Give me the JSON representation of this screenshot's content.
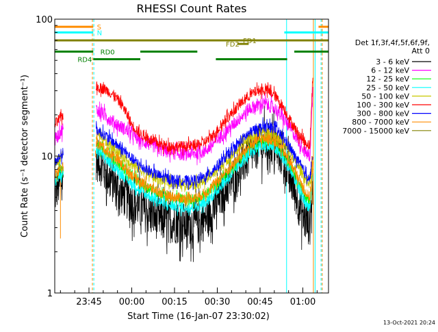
{
  "chart_data": {
    "type": "line",
    "title": "RHESSI Count Rates",
    "xlabel": "Start Time (16-Jan-07 23:30:02)",
    "ylabel": "Count Rate (s⁻¹ detector segment⁻¹)",
    "yscale": "log",
    "ylim": [
      1,
      100
    ],
    "y_ticks": [
      "1",
      "10",
      "100"
    ],
    "xlim_minutes_after_2330": [
      3,
      99
    ],
    "x_ticks": [
      {
        "label": "23:45",
        "m": 15
      },
      {
        "label": "00:00",
        "m": 30
      },
      {
        "label": "00:15",
        "m": 45
      },
      {
        "label": "00:30",
        "m": 60
      },
      {
        "label": "00:45",
        "m": 75
      },
      {
        "label": "01:00",
        "m": 90
      }
    ],
    "legend": {
      "placement": "right",
      "title": [
        "Det 1f,3f,4f,5f,6f,9f,",
        "Att 0"
      ],
      "entries": [
        {
          "label": "3 - 6 keV",
          "color": "#000000"
        },
        {
          "label": "6 - 12 keV",
          "color": "#ff00ff"
        },
        {
          "label": "12 - 25 keV",
          "color": "#00ff00"
        },
        {
          "label": "25 - 50 keV",
          "color": "#00ffff"
        },
        {
          "label": "50 - 100 keV",
          "color": "#c8c800"
        },
        {
          "label": "100 - 300 keV",
          "color": "#ff0000"
        },
        {
          "label": "300 - 800 keV",
          "color": "#0000ff"
        },
        {
          "label": "800 - 7000 keV",
          "color": "#ff8c00"
        },
        {
          "label": "7000 - 15000 keV",
          "color": "#808000"
        }
      ]
    },
    "flags": [
      {
        "label": "S",
        "color": "#ff8c00",
        "label_m": 17.8,
        "segments": [
          [
            3,
            16.5
          ],
          [
            95.5,
            99
          ]
        ],
        "level": 88
      },
      {
        "label": "N",
        "color": "#00ffff",
        "label_m": 17.8,
        "segments": [
          [
            3,
            16.5
          ],
          [
            83.5,
            99
          ]
        ],
        "level": 80
      },
      {
        "label": "FD1",
        "color": "#808000",
        "label_m": 69,
        "segments": [
          [
            3,
            99
          ]
        ],
        "level": 70
      },
      {
        "label": "FD2",
        "color": "#808000",
        "label_m": 63,
        "segments": [
          [
            67,
            71
          ]
        ],
        "level": 66
      },
      {
        "label": "RD0",
        "color": "#008000",
        "label_m": 19,
        "segments": [
          [
            3,
            16.5
          ],
          [
            33,
            53
          ],
          [
            87,
            99
          ]
        ],
        "level": 58
      },
      {
        "label": "RD4",
        "color": "#008000",
        "label_m": 11,
        "segments": [
          [
            16.5,
            33
          ],
          [
            59.5,
            84.5
          ]
        ],
        "level": 51
      }
    ],
    "vertical_lines": [
      {
        "m": 3,
        "color": "#00ffff",
        "dashed": false
      },
      {
        "m": 16.2,
        "color": "#ff8c00",
        "dashed": true
      },
      {
        "m": 16.7,
        "color": "#00ffff",
        "dashed": true
      },
      {
        "m": 84.3,
        "color": "#00ffff",
        "dashed": false
      },
      {
        "m": 93.7,
        "color": "#ff8c00",
        "dashed": false
      },
      {
        "m": 94.3,
        "color": "#00ffff",
        "dashed": false
      },
      {
        "m": 96.4,
        "color": "#00ffff",
        "dashed": true
      },
      {
        "m": 96.8,
        "color": "#ff8c00",
        "dashed": true
      }
    ],
    "x_curve_minutes": [
      3,
      4,
      5,
      6,
      17.5,
      19,
      21,
      24,
      27,
      30,
      33,
      37,
      41,
      45,
      49,
      53,
      56,
      59,
      62,
      65,
      68,
      71,
      74,
      77,
      80,
      83,
      86,
      89,
      91,
      92.5,
      93.5
    ],
    "series": [
      {
        "name": "3 - 6 keV",
        "color": "#000000",
        "noise": 0.16,
        "values": [
          5.2,
          6.0,
          6.4,
          6.8,
          9.5,
          8.8,
          7.4,
          6.2,
          5.2,
          4.6,
          4.2,
          3.7,
          3.4,
          3.3,
          3.2,
          3.2,
          3.5,
          4.2,
          5.4,
          6.6,
          8.2,
          10.0,
          11.6,
          12.4,
          12.0,
          9.8,
          6.6,
          4.2,
          3.3,
          3.2,
          6.0
        ]
      },
      {
        "name": "6 - 12 keV",
        "color": "#ff00ff",
        "noise": 0.05,
        "values": [
          13.0,
          14.0,
          15.0,
          16.0,
          22.0,
          21.0,
          19.5,
          17.5,
          16.0,
          14.5,
          13.0,
          12.0,
          11.0,
          10.5,
          10.3,
          10.5,
          11.0,
          12.5,
          14.5,
          16.5,
          19.0,
          22.0,
          23.5,
          24.0,
          22.5,
          19.0,
          15.5,
          12.5,
          10.5,
          10.0,
          30.0
        ]
      },
      {
        "name": "12 - 25 keV",
        "color": "#00ff00",
        "noise": 0.04,
        "values": [
          6.8,
          7.4,
          7.8,
          8.2,
          12.0,
          11.5,
          10.5,
          9.3,
          8.1,
          7.2,
          6.3,
          5.7,
          5.2,
          4.9,
          4.8,
          4.9,
          5.2,
          6.0,
          7.0,
          8.0,
          9.5,
          11.0,
          12.5,
          13.0,
          12.5,
          10.5,
          8.3,
          6.2,
          5.0,
          4.7,
          8.0
        ]
      },
      {
        "name": "25 - 50 keV",
        "color": "#00ffff",
        "noise": 0.04,
        "values": [
          6.2,
          6.8,
          7.2,
          7.6,
          11.0,
          10.5,
          9.5,
          8.3,
          7.2,
          6.3,
          5.6,
          5.0,
          4.5,
          4.3,
          4.2,
          4.3,
          4.6,
          5.3,
          6.3,
          7.3,
          8.8,
          10.2,
          11.5,
          12.0,
          11.5,
          9.6,
          7.6,
          5.6,
          4.5,
          4.2,
          7.2
        ]
      },
      {
        "name": "50 - 100 keV",
        "color": "#c8c800",
        "noise": 0.04,
        "values": [
          8.5,
          9.2,
          9.8,
          10.4,
          14.5,
          13.8,
          12.5,
          11.3,
          10.0,
          8.8,
          7.9,
          7.2,
          6.6,
          6.3,
          6.2,
          6.3,
          6.7,
          7.6,
          8.8,
          10.0,
          11.8,
          13.3,
          14.5,
          15.0,
          14.5,
          12.5,
          10.2,
          8.0,
          6.7,
          6.3,
          9.5
        ]
      },
      {
        "name": "100 - 300 keV",
        "color": "#ff0000",
        "noise": 0.04,
        "values": [
          17.0,
          18.0,
          19.0,
          20.0,
          32.0,
          31.5,
          30.5,
          27.5,
          23.0,
          17.0,
          14.5,
          13.0,
          12.0,
          11.8,
          11.8,
          12.0,
          12.8,
          14.5,
          17.5,
          20.5,
          24.0,
          27.5,
          30.0,
          30.5,
          28.0,
          23.0,
          17.5,
          14.0,
          12.5,
          12.0,
          40.0
        ]
      },
      {
        "name": "300 - 800 keV",
        "color": "#0000ff",
        "noise": 0.04,
        "values": [
          8.8,
          9.5,
          10.0,
          10.6,
          15.5,
          15.0,
          14.0,
          12.5,
          11.0,
          9.6,
          8.5,
          7.6,
          7.0,
          6.7,
          6.6,
          6.7,
          7.1,
          8.1,
          9.4,
          10.8,
          12.8,
          14.6,
          16.0,
          16.5,
          16.0,
          13.8,
          11.0,
          8.7,
          7.3,
          6.9,
          10.5
        ]
      },
      {
        "name": "800 - 7000 keV",
        "color": "#ff8c00",
        "noise": 0.04,
        "values": [
          7.0,
          7.6,
          8.0,
          8.4,
          12.5,
          12.0,
          11.0,
          9.8,
          8.5,
          7.3,
          6.5,
          5.8,
          5.3,
          5.0,
          4.9,
          5.0,
          5.4,
          6.2,
          7.3,
          8.4,
          10.0,
          11.6,
          13.0,
          13.5,
          13.0,
          11.0,
          8.6,
          6.6,
          5.4,
          5.0,
          8.5
        ]
      }
    ],
    "spikes": [
      {
        "color": "#ff8c00",
        "m": 5.0,
        "from": 6.5,
        "to": 2.5
      },
      {
        "color": "#ff8c00",
        "m": 17.3,
        "from": 11.0,
        "to": 9.8
      },
      {
        "color": "#ff8c00",
        "m": 93.2,
        "from": 10.0,
        "to": 4.5
      }
    ],
    "footer_timestamp": "13-Oct-2021 20:24"
  }
}
